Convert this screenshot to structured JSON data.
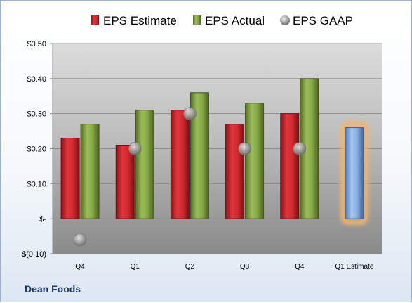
{
  "company": "Dean Foods",
  "chart_data": {
    "type": "bar",
    "categories": [
      "Q4",
      "Q1",
      "Q2",
      "Q3",
      "Q4",
      "Q1 Estimate"
    ],
    "series": [
      {
        "name": "EPS Estimate",
        "kind": "bar",
        "color": "#c0272d",
        "values": [
          0.23,
          0.21,
          0.31,
          0.27,
          0.3,
          null
        ]
      },
      {
        "name": "EPS Actual",
        "kind": "bar",
        "color": "#7a9a3a",
        "values": [
          0.27,
          0.31,
          0.36,
          0.33,
          0.4,
          null
        ]
      },
      {
        "name": "EPS GAAP",
        "kind": "marker",
        "color": "#9a9a9a",
        "values": [
          -0.06,
          0.2,
          0.3,
          0.2,
          0.2,
          null
        ]
      }
    ],
    "forecast": {
      "category": "Q1 Estimate",
      "value": 0.26,
      "color": "#6f9fd8",
      "highlight_color": "#f5b26b"
    },
    "ylim": [
      -0.1,
      0.5
    ],
    "y_ticks": [
      {
        "value": 0.5,
        "label": "$0.50"
      },
      {
        "value": 0.4,
        "label": "$0.40"
      },
      {
        "value": 0.3,
        "label": "$0.30"
      },
      {
        "value": 0.2,
        "label": "$0.20"
      },
      {
        "value": 0.1,
        "label": "$0.10"
      },
      {
        "value": 0.0,
        "label": "$-"
      },
      {
        "value": -0.1,
        "label": "$(0.10)"
      }
    ],
    "grid": true,
    "legend_position": "top"
  }
}
